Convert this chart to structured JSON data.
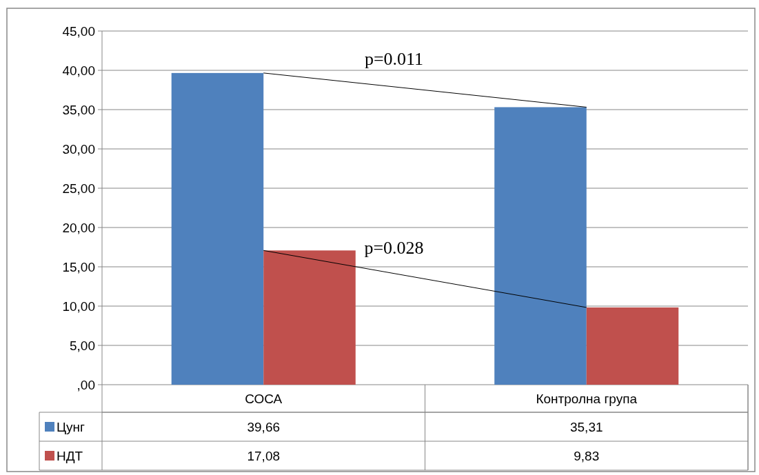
{
  "chart_data": {
    "type": "bar",
    "categories": [
      "СОСА",
      "Контролна група"
    ],
    "series": [
      {
        "name": "Цунг",
        "color": "#4f81bd",
        "values": [
          39.66,
          35.31
        ],
        "value_labels": [
          "39,66",
          "35,31"
        ]
      },
      {
        "name": "НДТ",
        "color": "#c0504d",
        "values": [
          17.08,
          9.83
        ],
        "value_labels": [
          "17,08",
          "9,83"
        ]
      }
    ],
    "ylim": [
      0,
      45
    ],
    "yticks": [
      {
        "value": 0,
        "label": ",00"
      },
      {
        "value": 5,
        "label": "5,00"
      },
      {
        "value": 10,
        "label": "10,00"
      },
      {
        "value": 15,
        "label": "15,00"
      },
      {
        "value": 20,
        "label": "20,00"
      },
      {
        "value": 25,
        "label": "25,00"
      },
      {
        "value": 30,
        "label": "30,00"
      },
      {
        "value": 35,
        "label": "35,00"
      },
      {
        "value": 40,
        "label": "40,00"
      },
      {
        "value": 45,
        "label": "45,00"
      }
    ],
    "grid": "y",
    "legend": "bottom left",
    "annotations": [
      "p=0.011",
      "p=0.028"
    ]
  }
}
